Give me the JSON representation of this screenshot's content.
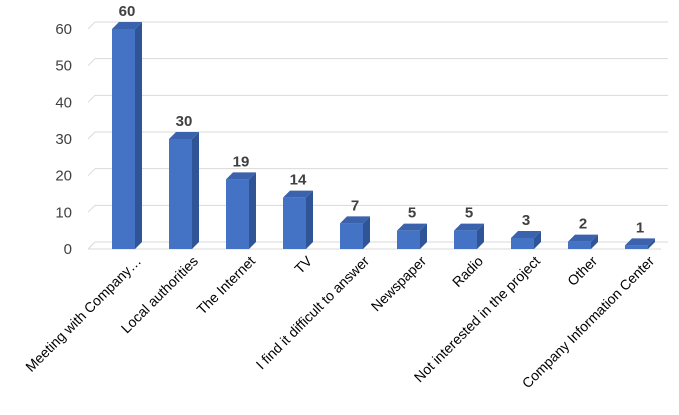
{
  "chart_data": {
    "type": "bar",
    "style": "3d-column",
    "categories": [
      "Meeting with Company…",
      "Local authorities",
      "The Internet",
      "TV",
      "I find it difficult to answer",
      "Newspaper",
      "Radio",
      "Not interested in the project",
      "Other",
      "Company Information Center"
    ],
    "values": [
      60,
      30,
      19,
      14,
      7,
      5,
      5,
      3,
      2,
      1
    ],
    "data_labels": [
      "60",
      "30",
      "19",
      "14",
      "7",
      "5",
      "5",
      "3",
      "2",
      "1"
    ],
    "y_ticks": [
      "0",
      "10",
      "20",
      "30",
      "40",
      "50",
      "60"
    ],
    "ylim": [
      0,
      60
    ],
    "grid": true,
    "legend": "none",
    "colors": {
      "bar_front": "#4472c4",
      "bar_side": "#2f5597",
      "bar_top": "#3a62ad",
      "grid": "#d9d9d9"
    }
  }
}
